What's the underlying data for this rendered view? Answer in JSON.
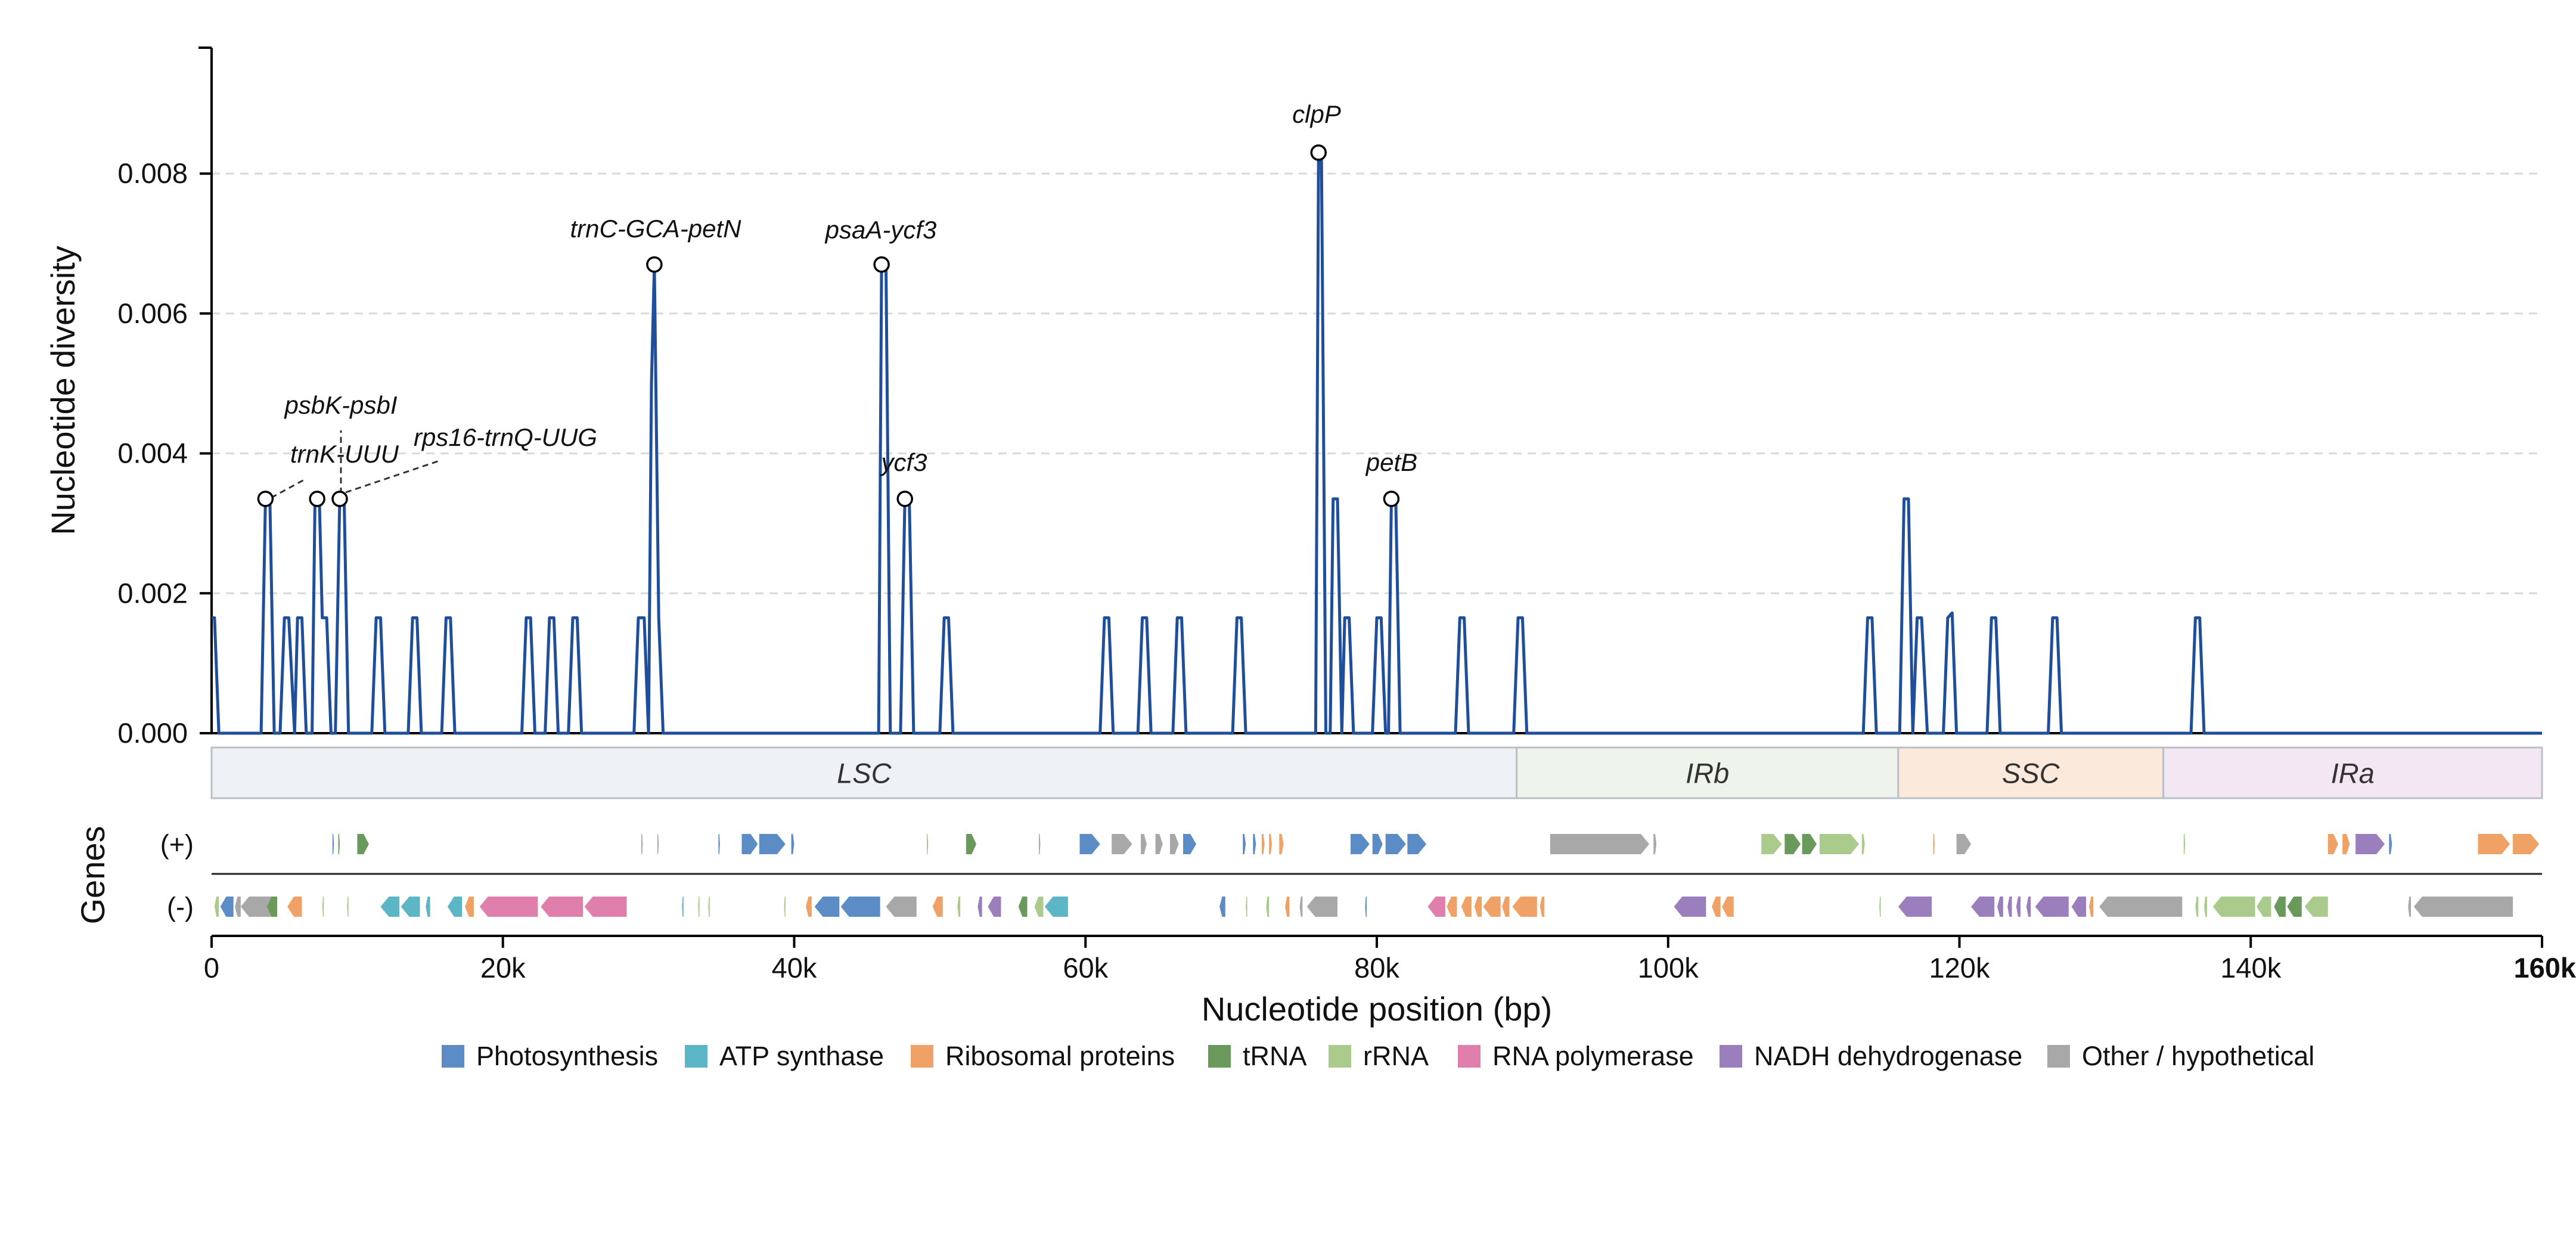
{
  "chart_data": {
    "type": "line",
    "ylabel": "Nucleotide diversity",
    "xlabel": "Nucleotide position (bp)",
    "genes_label": "Genes",
    "y_ticks": [
      "0.000",
      "0.002",
      "0.004",
      "0.006",
      "0.008"
    ],
    "y_tick_values": [
      0,
      0.002,
      0.004,
      0.006,
      0.008
    ],
    "ylim": [
      0,
      0.0098
    ],
    "x_ticks": [
      "0",
      "20k",
      "40k",
      "60k",
      "80k",
      "100k",
      "120k",
      "140k",
      "160k"
    ],
    "x_tick_values": [
      0,
      20000,
      40000,
      60000,
      80000,
      100000,
      120000,
      140000,
      160000
    ],
    "xlim": [
      0,
      160000
    ],
    "grid": "horizontal-dashed",
    "line_color": "#1f4e9a",
    "series": [
      {
        "x": [
          0,
          200,
          500,
          3400,
          3700,
          4000,
          4300,
          4700,
          5000,
          5300,
          5700,
          5900,
          6200,
          6500,
          6900,
          7100,
          7400,
          7600,
          7900,
          8200,
          8500,
          8800,
          9100,
          9400,
          9700,
          10000,
          11000,
          11300,
          11600,
          11900,
          13500,
          13800,
          14100,
          14400,
          15800,
          16100,
          16400,
          16700,
          21300,
          21600,
          21900,
          22200,
          22900,
          23200,
          23500,
          23800,
          24500,
          24800,
          25100,
          25400,
          29000,
          29300,
          29700,
          30000,
          30200,
          30400,
          30700,
          31000,
          45800,
          46000,
          46300,
          46600,
          47300,
          47600,
          47900,
          48200,
          50000,
          50300,
          50600,
          50900,
          61000,
          61300,
          61600,
          61900,
          63600,
          63900,
          64200,
          64500,
          66000,
          66300,
          66600,
          66900,
          70100,
          70400,
          70700,
          71000,
          75800,
          76000,
          76200,
          76500,
          76800,
          77000,
          77300,
          77600,
          77800,
          78100,
          78400,
          79700,
          80000,
          80300,
          80600,
          80800,
          81000,
          81300,
          81600,
          85400,
          85700,
          86000,
          86300,
          89400,
          89700,
          90000,
          90300,
          113400,
          113700,
          114000,
          114300,
          115900,
          116200,
          116500,
          116800,
          117100,
          117400,
          117800,
          118900,
          119200,
          119500,
          119800,
          121900,
          122200,
          122500,
          122800,
          126100,
          126400,
          126700,
          127000,
          135900,
          136200,
          136500,
          136800,
          160000
        ],
        "y": [
          0.00165,
          0.00165,
          0,
          0,
          0.00335,
          0.00335,
          0,
          0,
          0.00165,
          0.00165,
          0,
          0.00165,
          0.00165,
          0,
          0,
          0.00335,
          0.00335,
          0.00165,
          0.00165,
          0,
          0,
          0.00335,
          0.00335,
          0,
          0,
          0,
          0,
          0.00165,
          0.00165,
          0,
          0,
          0.00165,
          0.00165,
          0,
          0,
          0.00165,
          0.00165,
          0,
          0,
          0.00165,
          0.00165,
          0,
          0,
          0.00165,
          0.00165,
          0,
          0,
          0.00165,
          0.00165,
          0,
          0,
          0.00165,
          0.00165,
          0,
          0.005,
          0.0067,
          0.00165,
          0,
          0,
          0.0067,
          0.0067,
          0,
          0,
          0.00335,
          0.00335,
          0,
          0,
          0.00165,
          0.00165,
          0,
          0,
          0.00165,
          0.00165,
          0,
          0,
          0.00165,
          0.00165,
          0,
          0,
          0.00165,
          0.00165,
          0,
          0,
          0.00165,
          0.00165,
          0,
          0,
          0.0083,
          0.0083,
          0,
          0,
          0.00335,
          0.00335,
          0,
          0.00165,
          0.00165,
          0,
          0,
          0.00165,
          0.00165,
          0,
          0,
          0.00335,
          0.00335,
          0,
          0,
          0.00165,
          0.00165,
          0,
          0,
          0.00165,
          0.00165,
          0,
          0,
          0.00165,
          0.00165,
          0,
          0,
          0.00335,
          0.00335,
          0,
          0.00165,
          0.00165,
          0,
          0,
          0.00165,
          0.00172,
          0,
          0,
          0.00165,
          0.00165,
          0,
          0,
          0.00165,
          0.00165,
          0,
          0,
          0.00165,
          0.00165,
          0,
          0
        ]
      }
    ],
    "annotations": [
      {
        "label": "trnK-UUU",
        "x": 3700,
        "y": 0.00335,
        "leader": "dashed"
      },
      {
        "label": "psbK-psbI",
        "x": 8800,
        "y": 0.00335,
        "leader": "dashed"
      },
      {
        "label": "rps16-trnQ-UUG",
        "x": 8800,
        "y": 0.00335,
        "leader": "dashed"
      },
      {
        "label": "trnC-GCA-petN",
        "x": 30400,
        "y": 0.0067
      },
      {
        "label": "psaA-ycf3",
        "x": 46000,
        "y": 0.0067
      },
      {
        "label": "ycf3",
        "x": 47600,
        "y": 0.00335
      },
      {
        "label": "clpP",
        "x": 76000,
        "y": 0.0083
      },
      {
        "label": "petB",
        "x": 81000,
        "y": 0.00335
      }
    ],
    "extra_markers": [
      {
        "x": 7250,
        "y": 0.00335
      }
    ],
    "regions": [
      {
        "label": "LSC",
        "start": 0,
        "end": 89600,
        "color": "#eef2f6"
      },
      {
        "label": "IRb",
        "start": 89600,
        "end": 115800,
        "color": "#eef3ec"
      },
      {
        "label": "SSC",
        "start": 115800,
        "end": 134000,
        "color": "#fbe9dc"
      },
      {
        "label": "IRa",
        "start": 134000,
        "end": 160000,
        "color": "#f2e7f3"
      }
    ],
    "strands": [
      "(+)",
      "(-)"
    ],
    "legend": [
      {
        "label": "Photosynthesis",
        "color": "#5b8cc6"
      },
      {
        "label": "ATP synthase",
        "color": "#5db6c6"
      },
      {
        "label": "Ribosomal proteins",
        "color": "#f0a266"
      },
      {
        "label": "tRNA",
        "color": "#6a9a5b"
      },
      {
        "label": "rRNA",
        "color": "#aacb8c"
      },
      {
        "label": "RNA polymerase",
        "color": "#e07fab"
      },
      {
        "label": "NADH dehydrogenase",
        "color": "#9b7fbd"
      },
      {
        "label": "Other / hypothetical",
        "color": "#a8a8a8"
      }
    ],
    "genes_plus": [
      [
        8300,
        8400,
        0
      ],
      [
        8700,
        8800,
        3
      ],
      [
        10000,
        10800,
        3
      ],
      [
        29500,
        29600,
        7
      ],
      [
        30600,
        30700,
        7
      ],
      [
        34800,
        34900,
        0
      ],
      [
        36400,
        37500,
        0
      ],
      [
        37600,
        39400,
        0
      ],
      [
        39800,
        40000,
        0
      ],
      [
        49100,
        49200,
        4
      ],
      [
        51800,
        52500,
        3
      ],
      [
        56800,
        56900,
        7
      ],
      [
        59600,
        61000,
        0
      ],
      [
        61800,
        63200,
        7
      ],
      [
        63800,
        64200,
        7
      ],
      [
        64800,
        65300,
        7
      ],
      [
        65800,
        66400,
        7
      ],
      [
        66700,
        67600,
        0
      ],
      [
        70800,
        71000,
        0
      ],
      [
        71500,
        71700,
        0
      ],
      [
        72100,
        72300,
        2
      ],
      [
        72600,
        72800,
        2
      ],
      [
        73300,
        73600,
        2
      ],
      [
        78200,
        79500,
        0
      ],
      [
        79700,
        80400,
        0
      ],
      [
        80600,
        82000,
        0
      ],
      [
        82100,
        83400,
        0
      ],
      [
        91900,
        98700,
        7
      ],
      [
        99000,
        99200,
        7
      ],
      [
        106400,
        107800,
        4
      ],
      [
        108000,
        109100,
        3
      ],
      [
        109200,
        110200,
        3
      ],
      [
        110400,
        113100,
        4
      ],
      [
        113300,
        113500,
        4
      ],
      [
        118200,
        118300,
        2
      ],
      [
        119800,
        120800,
        7
      ],
      [
        135400,
        135500,
        4
      ],
      [
        145300,
        146000,
        2
      ],
      [
        146300,
        146800,
        2
      ],
      [
        147200,
        149200,
        6
      ],
      [
        149500,
        149700,
        0
      ],
      [
        155600,
        157800,
        2
      ],
      [
        158000,
        159800,
        2
      ]
    ],
    "genes_minus": [
      [
        200,
        500,
        4
      ],
      [
        600,
        1500,
        0
      ],
      [
        1600,
        2000,
        7
      ],
      [
        2000,
        4300,
        7
      ],
      [
        3800,
        4500,
        3
      ],
      [
        5200,
        6200,
        2
      ],
      [
        7600,
        7700,
        4
      ],
      [
        9300,
        9400,
        4
      ],
      [
        11600,
        12900,
        1
      ],
      [
        13000,
        14300,
        1
      ],
      [
        14700,
        15000,
        1
      ],
      [
        16200,
        17200,
        1
      ],
      [
        17400,
        18000,
        2
      ],
      [
        18400,
        22400,
        5
      ],
      [
        22600,
        25500,
        5
      ],
      [
        25600,
        28500,
        5
      ],
      [
        32300,
        32400,
        1
      ],
      [
        33400,
        33500,
        4
      ],
      [
        34100,
        34200,
        4
      ],
      [
        39300,
        39400,
        4
      ],
      [
        40800,
        41200,
        2
      ],
      [
        41400,
        43100,
        0
      ],
      [
        43200,
        45900,
        0
      ],
      [
        46300,
        48400,
        7
      ],
      [
        49500,
        50200,
        2
      ],
      [
        51200,
        51400,
        4
      ],
      [
        52600,
        52900,
        6
      ],
      [
        53300,
        54200,
        6
      ],
      [
        55400,
        56000,
        3
      ],
      [
        56500,
        57100,
        4
      ],
      [
        57200,
        58800,
        1
      ],
      [
        69200,
        69600,
        0
      ],
      [
        71000,
        71100,
        4
      ],
      [
        72400,
        72600,
        4
      ],
      [
        73700,
        74000,
        2
      ],
      [
        74700,
        74900,
        7
      ],
      [
        75200,
        77300,
        7
      ],
      [
        79200,
        79300,
        0
      ],
      [
        83500,
        84700,
        5
      ],
      [
        84800,
        85500,
        2
      ],
      [
        85800,
        86500,
        2
      ],
      [
        86700,
        87200,
        2
      ],
      [
        87300,
        88500,
        2
      ],
      [
        88600,
        89100,
        2
      ],
      [
        89300,
        91000,
        2
      ],
      [
        91200,
        91500,
        2
      ],
      [
        100400,
        102600,
        6
      ],
      [
        103000,
        103600,
        2
      ],
      [
        103700,
        104500,
        2
      ],
      [
        114500,
        114600,
        4
      ],
      [
        115800,
        118100,
        6
      ],
      [
        120800,
        122400,
        6
      ],
      [
        122600,
        123000,
        6
      ],
      [
        123300,
        123600,
        6
      ],
      [
        123900,
        124200,
        6
      ],
      [
        124600,
        124900,
        6
      ],
      [
        125200,
        127500,
        6
      ],
      [
        127700,
        128700,
        6
      ],
      [
        128900,
        129200,
        2
      ],
      [
        129600,
        135300,
        7
      ],
      [
        136200,
        136400,
        4
      ],
      [
        136800,
        137000,
        4
      ],
      [
        137400,
        140300,
        4
      ],
      [
        140400,
        141400,
        4
      ],
      [
        141600,
        142400,
        3
      ],
      [
        142500,
        143500,
        3
      ],
      [
        143700,
        145300,
        4
      ],
      [
        150800,
        151000,
        7
      ],
      [
        151200,
        158000,
        7
      ]
    ]
  }
}
